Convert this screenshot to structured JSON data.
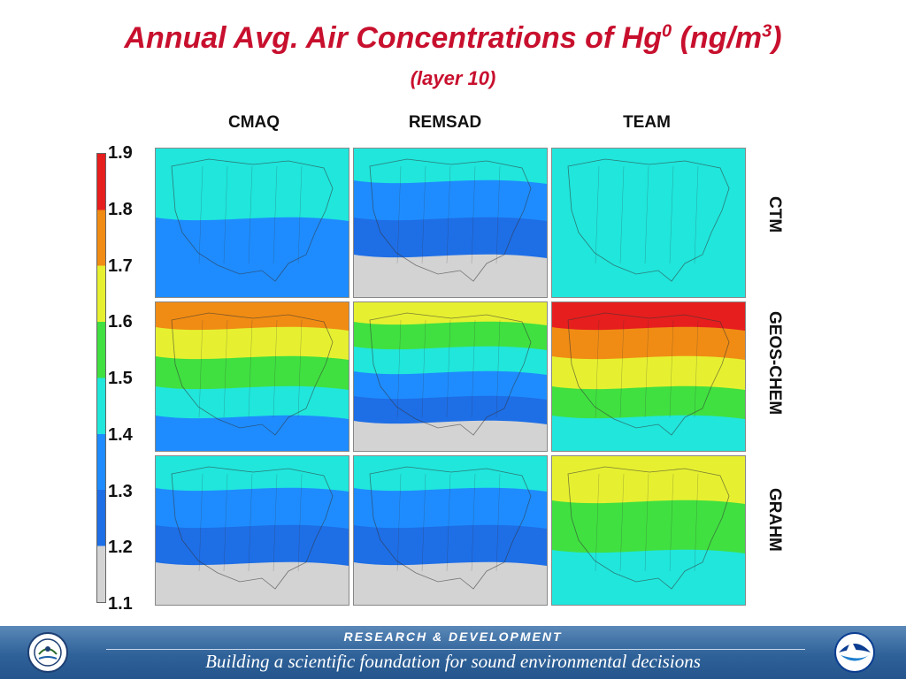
{
  "title": {
    "main": "Annual Avg. Air Concentrations of Hg",
    "sup1": "0",
    "unit": " (ng/m",
    "sup2": "3",
    "close": ")"
  },
  "subtitle": "(layer 10)",
  "columns": [
    "CMAQ",
    "REMSAD",
    "TEAM"
  ],
  "rows": [
    "CTM",
    "GEOS-CHEM",
    "GRAHM"
  ],
  "footer": {
    "top": "RESEARCH & DEVELOPMENT",
    "bottom": "Building a scientific foundation for sound environmental decisions"
  },
  "colors": {
    "title": "#c8102e",
    "footer_bg": "#2f6299",
    "land_outline": "#333333"
  },
  "logos": [
    "epa-seal-icon",
    "noaa-logo-icon"
  ],
  "chart_data": {
    "type": "heatmap",
    "title": "Annual Avg. Air Concentrations of Hg0 (ng/m3)",
    "subtitle": "(layer 10)",
    "colorbar": {
      "ticks": [
        "1.9",
        "1.8",
        "1.7",
        "1.6",
        "1.5",
        "1.4",
        "1.3",
        "1.2",
        "1.1"
      ],
      "range": [
        1.1,
        1.9
      ],
      "bins": [
        {
          "from": 1.1,
          "to": 1.2,
          "color": "#d3d3d3"
        },
        {
          "from": 1.2,
          "to": 1.3,
          "color": "#1e6ee6"
        },
        {
          "from": 1.3,
          "to": 1.4,
          "color": "#1e8cff"
        },
        {
          "from": 1.4,
          "to": 1.5,
          "color": "#20e6dc"
        },
        {
          "from": 1.5,
          "to": 1.6,
          "color": "#40e040"
        },
        {
          "from": 1.6,
          "to": 1.7,
          "color": "#e6f030"
        },
        {
          "from": 1.7,
          "to": 1.8,
          "color": "#f08c14"
        },
        {
          "from": 1.8,
          "to": 1.9,
          "color": "#e61e1e"
        }
      ]
    },
    "panels": [
      {
        "model": "CMAQ",
        "case": "CTM",
        "range": [
          1.3,
          1.5
        ]
      },
      {
        "model": "REMSAD",
        "case": "CTM",
        "range": [
          1.1,
          1.5
        ]
      },
      {
        "model": "TEAM",
        "case": "CTM",
        "range": [
          1.4,
          1.5
        ]
      },
      {
        "model": "CMAQ",
        "case": "GEOS-CHEM",
        "range": [
          1.3,
          1.8
        ]
      },
      {
        "model": "REMSAD",
        "case": "GEOS-CHEM",
        "range": [
          1.1,
          1.7
        ]
      },
      {
        "model": "TEAM",
        "case": "GEOS-CHEM",
        "range": [
          1.4,
          1.9
        ]
      },
      {
        "model": "CMAQ",
        "case": "GRAHM",
        "range": [
          1.1,
          1.5
        ]
      },
      {
        "model": "REMSAD",
        "case": "GRAHM",
        "range": [
          1.1,
          1.5
        ]
      },
      {
        "model": "TEAM",
        "case": "GRAHM",
        "range": [
          1.4,
          1.7
        ]
      }
    ]
  }
}
